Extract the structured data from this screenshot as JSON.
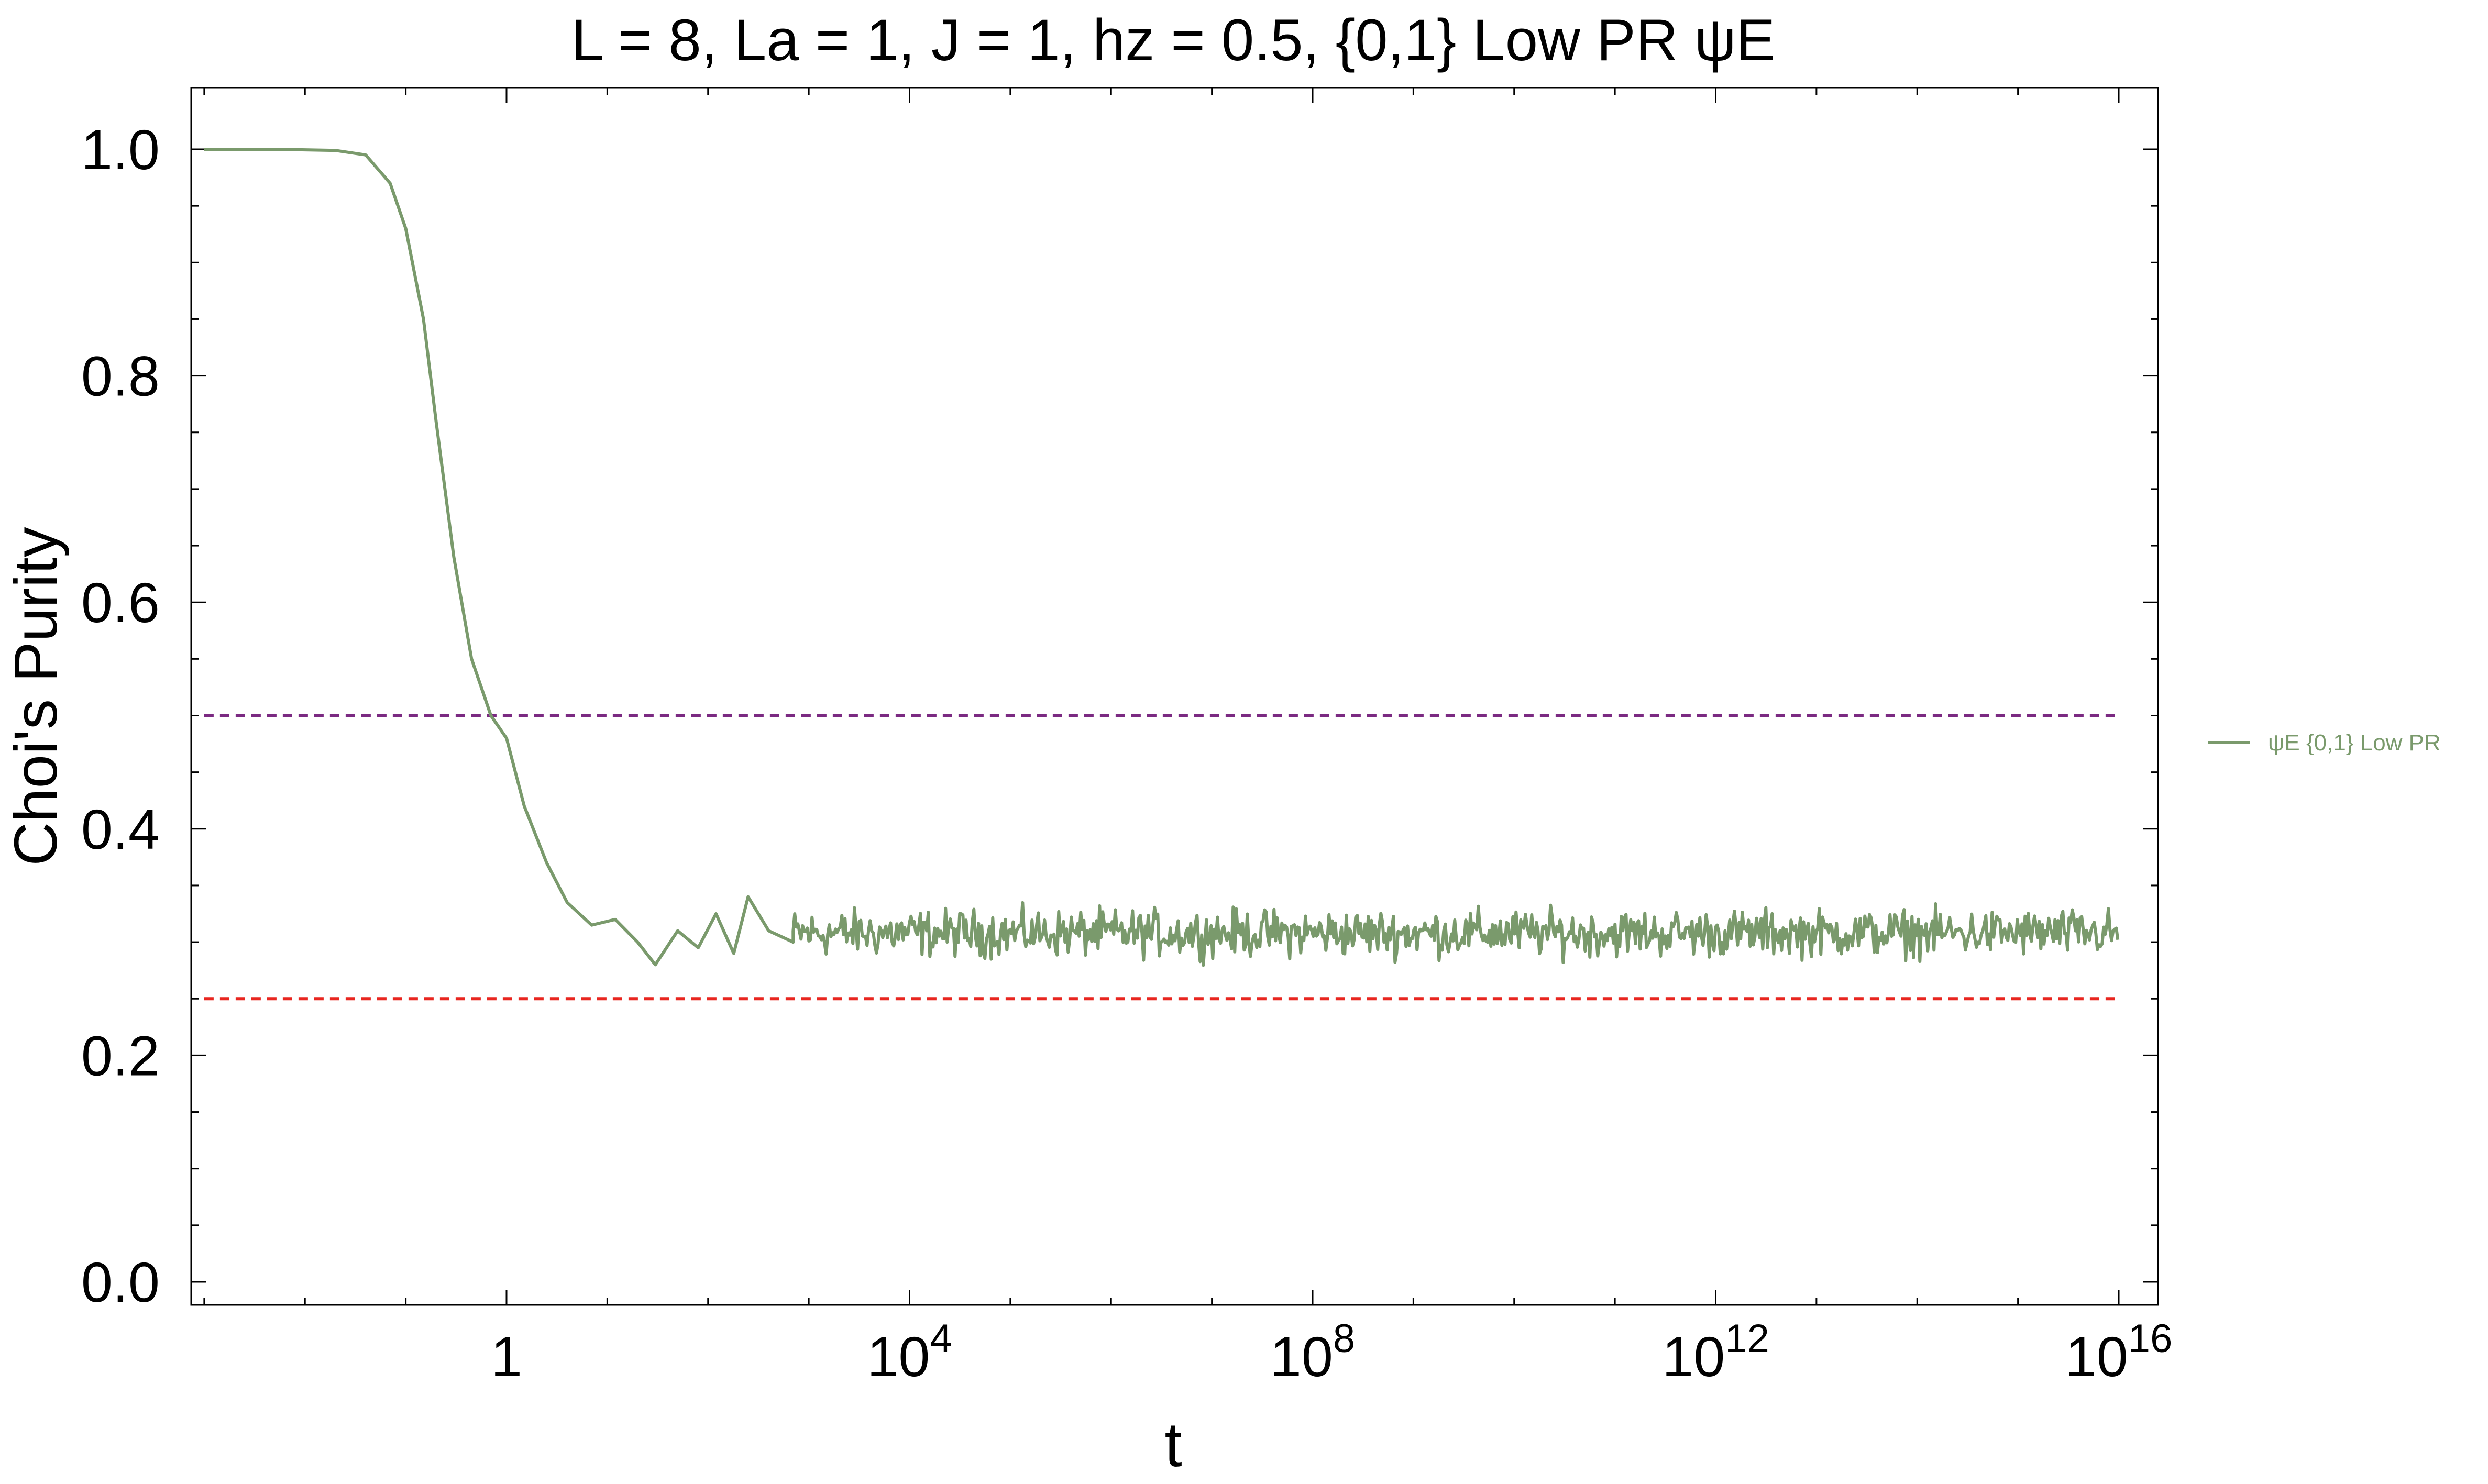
{
  "chart_data": {
    "type": "line",
    "title": "L = 8, La = 1, J = 1, hz = 0.5, {0,1} Low PR ψE",
    "xlabel": "t",
    "ylabel": "Choi's Purity",
    "x_scale": "log",
    "xlim": [
      0.001,
      1e+16
    ],
    "ylim": [
      0.0,
      1.0
    ],
    "x_ticks": [
      {
        "value": 1,
        "label": "1"
      },
      {
        "value": 10000,
        "label": "10^4"
      },
      {
        "value": 100000000,
        "label": "10^8"
      },
      {
        "value": 1000000000000,
        "label": "10^12"
      },
      {
        "value": 10000000000000000,
        "label": "10^16"
      }
    ],
    "y_ticks": [
      {
        "value": 0.0,
        "label": "0.0"
      },
      {
        "value": 0.2,
        "label": "0.2"
      },
      {
        "value": 0.4,
        "label": "0.4"
      },
      {
        "value": 0.6,
        "label": "0.6"
      },
      {
        "value": 0.8,
        "label": "0.8"
      },
      {
        "value": 1.0,
        "label": "1.0"
      }
    ],
    "series": [
      {
        "name": "ψE {0,1} Low PR",
        "color": "#7a9a6c",
        "style": "solid",
        "points": [
          [
            0.001,
            1.0
          ],
          [
            0.005,
            1.0
          ],
          [
            0.02,
            0.999
          ],
          [
            0.04,
            0.995
          ],
          [
            0.07,
            0.97
          ],
          [
            0.1,
            0.93
          ],
          [
            0.15,
            0.85
          ],
          [
            0.2,
            0.76
          ],
          [
            0.3,
            0.64
          ],
          [
            0.45,
            0.55
          ],
          [
            0.7,
            0.5
          ],
          [
            1.0,
            0.48
          ],
          [
            1.5,
            0.42
          ],
          [
            2.5,
            0.37
          ],
          [
            4,
            0.335
          ],
          [
            7,
            0.315
          ],
          [
            12,
            0.32
          ],
          [
            20,
            0.3
          ],
          [
            30,
            0.28
          ],
          [
            50,
            0.31
          ],
          [
            80,
            0.295
          ],
          [
            120,
            0.325
          ],
          [
            180,
            0.29
          ],
          [
            250,
            0.34
          ],
          [
            400,
            0.31
          ],
          [
            700,
            0.3
          ]
        ],
        "fluctuation": {
          "x_from": 700,
          "x_to": 1e+16,
          "mean": 0.308,
          "amplitude": 0.03
        }
      },
      {
        "name": "",
        "color": "#7b2a82",
        "style": "dashed",
        "points": [
          [
            0.001,
            0.5
          ],
          [
            1e+16,
            0.5
          ]
        ]
      },
      {
        "name": "",
        "color": "#e8251f",
        "style": "dashed",
        "points": [
          [
            0.001,
            0.25
          ],
          [
            1e+16,
            0.25
          ]
        ]
      }
    ],
    "legend": {
      "placement": "right",
      "entries": [
        {
          "label": "ψE {0,1} Low PR",
          "color": "#7a9a6c"
        }
      ]
    },
    "grid": false,
    "frame": true
  }
}
